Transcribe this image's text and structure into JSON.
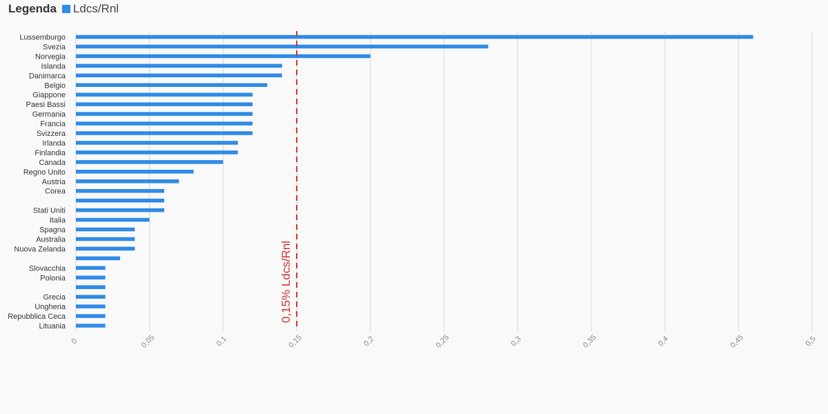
{
  "legend": {
    "title": "Legenda",
    "series_label": "Ldcs/Rnl",
    "series_color": "#2f8be6"
  },
  "chart_data": {
    "type": "bar",
    "orientation": "horizontal",
    "categories": [
      "Lussemburgo",
      "Svezia",
      "Norvegia",
      "Islanda",
      "Danimarca",
      "Belgio",
      "Giappone",
      "Paesi Bassi",
      "Germania",
      "Francia",
      "Svizzera",
      "Irlanda",
      "Finlandia",
      "Canada",
      "Regno Unito",
      "Austria",
      "Corea",
      "",
      "Stati Uniti",
      "Italia",
      "Spagna",
      "Australia",
      "Nuova Zelanda",
      "",
      "Slovacchia",
      "Polonia",
      "",
      "Grecia",
      "Ungheria",
      "Repubblica Ceca",
      "Lituania"
    ],
    "series": [
      {
        "name": "Ldcs/Rnl",
        "values": [
          0.46,
          0.28,
          0.2,
          0.14,
          0.14,
          0.13,
          0.12,
          0.12,
          0.12,
          0.12,
          0.12,
          0.11,
          0.11,
          0.1,
          0.08,
          0.07,
          0.06,
          0.06,
          0.06,
          0.05,
          0.04,
          0.04,
          0.04,
          0.03,
          0.02,
          0.02,
          0.02,
          0.02,
          0.02,
          0.02,
          0.02
        ]
      }
    ],
    "xlim": [
      0,
      0.5
    ],
    "x_ticks": [
      0,
      0.05,
      0.1,
      0.15,
      0.2,
      0.25,
      0.3,
      0.35,
      0.4,
      0.45,
      0.5
    ],
    "x_tick_labels": [
      "0",
      "0,05",
      "0,1",
      "0,15",
      "0,2",
      "0,25",
      "0,3",
      "0,35",
      "0,4",
      "0,45",
      "0,5"
    ],
    "reference_line": {
      "value": 0.15,
      "label": "0,15% Ldcs/Rnl",
      "color": "#d0312d"
    },
    "grid": true,
    "legend_position": "top-left",
    "bar_color": "#2f8be6"
  }
}
